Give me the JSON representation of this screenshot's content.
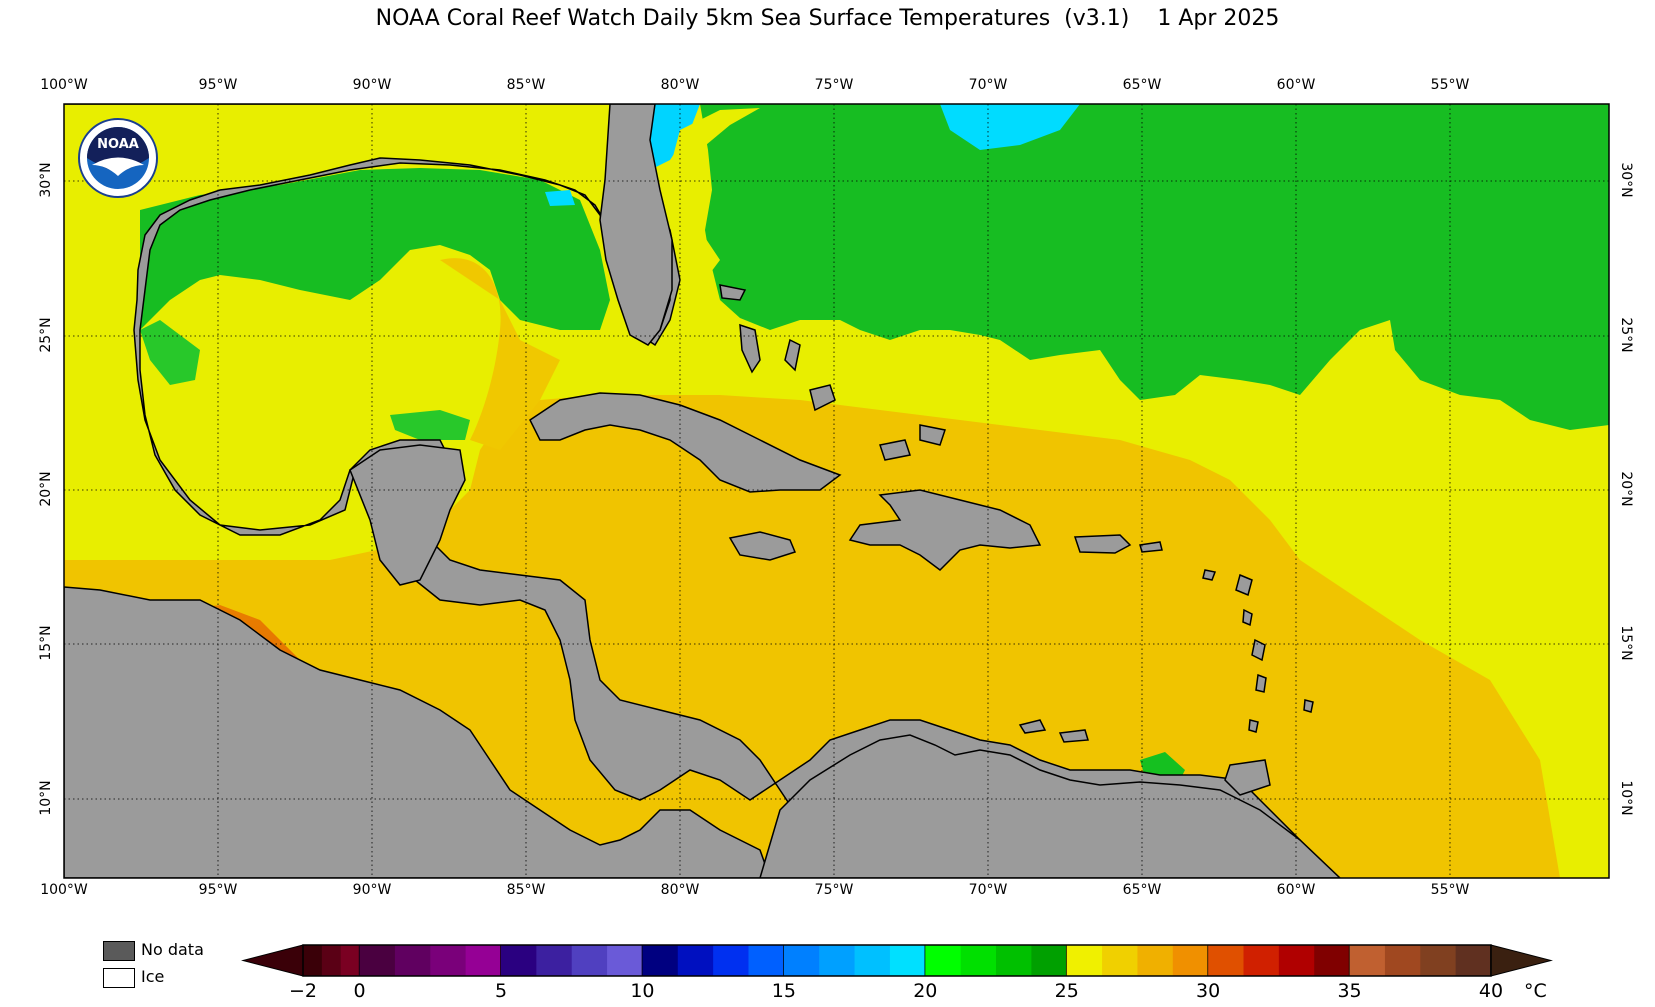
{
  "title": "NOAA Coral Reef Watch Daily 5km Sea Surface Temperatures  (v3.1)    1 Apr 2025",
  "map": {
    "longitude_labels": [
      "100°W",
      "95°W",
      "90°W",
      "85°W",
      "80°W",
      "75°W",
      "70°W",
      "65°W",
      "60°W",
      "55°W"
    ],
    "latitude_labels": [
      "30°N",
      "25°N",
      "20°N",
      "15°N",
      "10°N"
    ],
    "colors": {
      "land": "#9b9b9b",
      "coastline": "#000000",
      "cool_green": "#15c020",
      "bright_green": "#00e400",
      "cyan": "#00d8ff",
      "yellow": "#e6ee00",
      "gold": "#f0c400",
      "orange_gold": "#eda800",
      "orange": "#ec8500",
      "red_orange": "#e06a00"
    }
  },
  "logo": {
    "text": "NOAA"
  },
  "legend": {
    "no_data_label": "No data",
    "ice_label": "Ice",
    "no_data_color": "#5a5a5a",
    "ice_color": "#ffffff",
    "tick_labels": [
      "−2",
      "0",
      "5",
      "10",
      "15",
      "20",
      "25",
      "30",
      "35",
      "40"
    ],
    "unit": "°C"
  }
}
